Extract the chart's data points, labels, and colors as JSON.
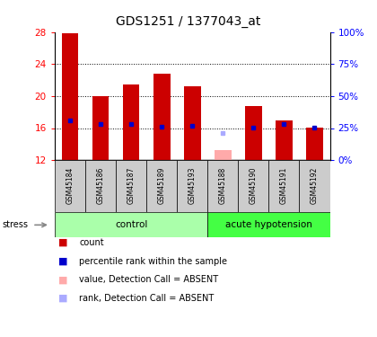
{
  "title": "GDS1251 / 1377043_at",
  "samples": [
    "GSM45184",
    "GSM45186",
    "GSM45187",
    "GSM45189",
    "GSM45193",
    "GSM45188",
    "GSM45190",
    "GSM45191",
    "GSM45192"
  ],
  "count_values": [
    27.8,
    20.0,
    21.5,
    22.8,
    21.2,
    null,
    18.8,
    17.0,
    16.1
  ],
  "absent_value": [
    null,
    null,
    null,
    null,
    null,
    13.2,
    null,
    null,
    null
  ],
  "percentile_rank": [
    17.0,
    16.5,
    16.5,
    16.2,
    16.3,
    null,
    16.1,
    16.5,
    16.1
  ],
  "absent_rank": [
    null,
    null,
    null,
    null,
    null,
    15.4,
    null,
    null,
    null
  ],
  "ylim": [
    12,
    28
  ],
  "yticks": [
    12,
    16,
    20,
    24,
    28
  ],
  "y2ticks_vals": [
    0,
    25,
    50,
    75,
    100
  ],
  "y2ticks_labels": [
    "0%",
    "25%",
    "50%",
    "75%",
    "100%"
  ],
  "bar_color": "#cc0000",
  "rank_color": "#0000cc",
  "absent_bar_color": "#ffaaaa",
  "absent_rank_color": "#aaaaff",
  "bg_color": "#ffffff",
  "label_area_bg": "#cccccc",
  "control_color": "#aaffaa",
  "hypotension_color": "#44ff44",
  "bar_width": 0.55,
  "grid_yticks": [
    16,
    20,
    24
  ]
}
